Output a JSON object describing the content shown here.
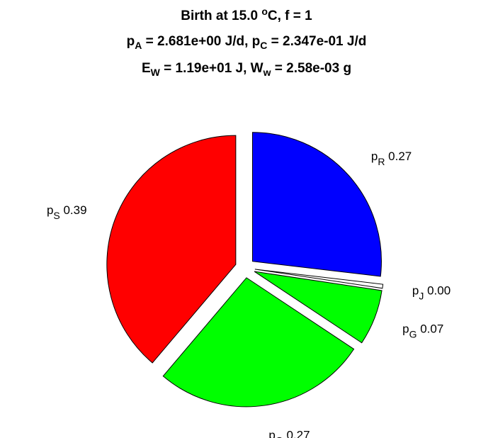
{
  "title": {
    "line1": {
      "a": "Birth at 15.0 ",
      "sup": "o",
      "b": "C, f = 1"
    },
    "line2": {
      "p": "p",
      "sub1": "A",
      "mid": " = 2.681e+00 J/d, p",
      "sub2": "C",
      "end": " = 2.347e-01 J/d"
    },
    "line3": {
      "e": "E",
      "sub1": "W",
      "mid": " = 1.19e+01 J, W",
      "sub2": "w",
      "end": " = 2.58e-03 g"
    }
  },
  "chart_data": {
    "type": "pie",
    "start_angle_deg": 90,
    "direction": "clockwise",
    "exploded": true,
    "slices": [
      {
        "base": "p",
        "sub": "R",
        "value": 0.27,
        "label": "0.27",
        "color": "#0000ff"
      },
      {
        "base": "p",
        "sub": "J",
        "value": 0.005,
        "label": "0.00",
        "color": "#ffffff"
      },
      {
        "base": "p",
        "sub": "G",
        "value": 0.07,
        "label": "0.07",
        "color": "#00ff00"
      },
      {
        "base": "p",
        "sub": "G",
        "value": 0.27,
        "label": "0.27",
        "color": "#00ff00"
      },
      {
        "base": "p",
        "sub": "S",
        "value": 0.39,
        "label": "0.39",
        "color": "#ff0000"
      }
    ]
  }
}
